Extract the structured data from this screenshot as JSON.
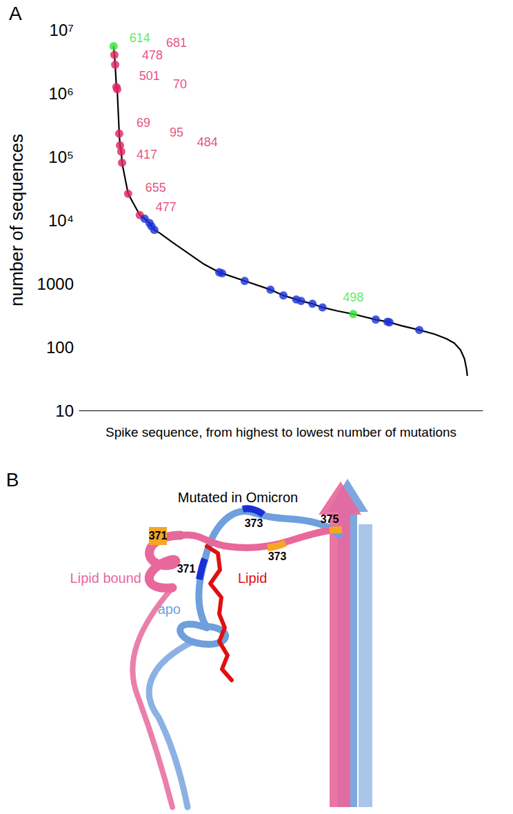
{
  "chart_data": {
    "type": "line",
    "title": "A",
    "x_label": "Spike sequence, from highest to lowest number of mutations",
    "y_label": "number of sequences",
    "series": [
      {
        "type": "line",
        "color": "#000000",
        "line_style": "solid",
        "x": [
          8.5,
          8.7,
          8.9,
          9.2,
          9.4,
          9.9,
          10.1,
          10.4,
          10.6,
          12.1,
          15.0,
          16.2,
          17.4,
          17.9,
          18.6,
          20,
          23,
          27,
          31,
          34.7,
          35.4,
          41,
          47.4,
          50.6,
          53.8,
          55,
          57.8,
          60.3,
          64,
          67.9,
          73.5,
          76.4,
          76.9,
          80,
          84.3,
          88,
          91,
          93,
          94.5,
          95.5,
          96,
          96.2
        ],
        "values": [
          5500000,
          4000000,
          2800000,
          1250000,
          1150000,
          230000,
          150000,
          120000,
          80000,
          26000,
          12000,
          10500,
          9000,
          8000,
          7000,
          6200,
          4500,
          3000,
          2000,
          1500,
          1450,
          1100,
          800,
          650,
          560,
          530,
          480,
          420,
          370,
          330,
          270,
          250,
          245,
          215,
          185,
          160,
          135,
          115,
          90,
          65,
          45,
          35
        ]
      },
      {
        "type": "scatter",
        "marker": "circle",
        "x": [
          8.5,
          8.7,
          8.9,
          9.2,
          9.4,
          9.9,
          10.1,
          10.4,
          10.6,
          12.1,
          15.0,
          16.2,
          17.4,
          17.9,
          18.6,
          34.7,
          35.4,
          41.0,
          47.4,
          50.6,
          53.8,
          55.0,
          57.8,
          60.3,
          67.9,
          73.5,
          76.4,
          76.9,
          84.3
        ],
        "values": [
          5500000,
          4000000,
          2800000,
          1250000,
          1150000,
          230000,
          150000,
          120000,
          80000,
          26000,
          12000,
          10500,
          9000,
          8000,
          7000,
          1500,
          1450,
          1100,
          800,
          650,
          560,
          530,
          480,
          420,
          330,
          270,
          250,
          245,
          185
        ],
        "colors": [
          "#33e533",
          "#e0245e",
          "#e0245e",
          "#e0245e",
          "#e0245e",
          "#e0245e",
          "#e0245e",
          "#e0245e",
          "#e0245e",
          "#e0245e",
          "#e0245e",
          "#1a2fd6",
          "#1a2fd6",
          "#1a2fd6",
          "#1a2fd6",
          "#1a2fd6",
          "#1a2fd6",
          "#1a2fd6",
          "#1a2fd6",
          "#1a2fd6",
          "#1a2fd6",
          "#1a2fd6",
          "#1a2fd6",
          "#1a2fd6",
          "#33e533",
          "#1a2fd6",
          "#1a2fd6",
          "#1a2fd6",
          "#1a2fd6"
        ],
        "labels": [
          "614",
          "681",
          "478",
          "501",
          "70",
          "69",
          "95",
          "484",
          "417",
          "655",
          "477",
          null,
          null,
          null,
          null,
          null,
          null,
          null,
          null,
          null,
          null,
          null,
          null,
          null,
          "498",
          null,
          null,
          null,
          null
        ]
      }
    ],
    "xlim": [
      0,
      100
    ],
    "ylim": [
      10,
      10000000
    ],
    "yticks": [
      10,
      100,
      1000,
      {
        "value": 10000,
        "label": "10⁴"
      },
      {
        "value": 100000,
        "label": "10⁵"
      },
      {
        "value": 1000000,
        "label": "10⁶"
      },
      {
        "value": 10000000,
        "label": "10⁷"
      }
    ],
    "log": "y",
    "grid": false,
    "tick_labels": "y"
  },
  "figure_b": {
    "label": "B",
    "title": "Mutated in Omicron",
    "structures": [
      {
        "label": "Lipid bound",
        "color": "#e8689c",
        "residues": [
          "371",
          "373",
          "375"
        ]
      },
      {
        "label": "apo",
        "color": "#6f9fdc",
        "residues": [
          "373",
          "371"
        ]
      }
    ],
    "ligand": {
      "label": "Lipid",
      "color": "#e01010"
    }
  }
}
